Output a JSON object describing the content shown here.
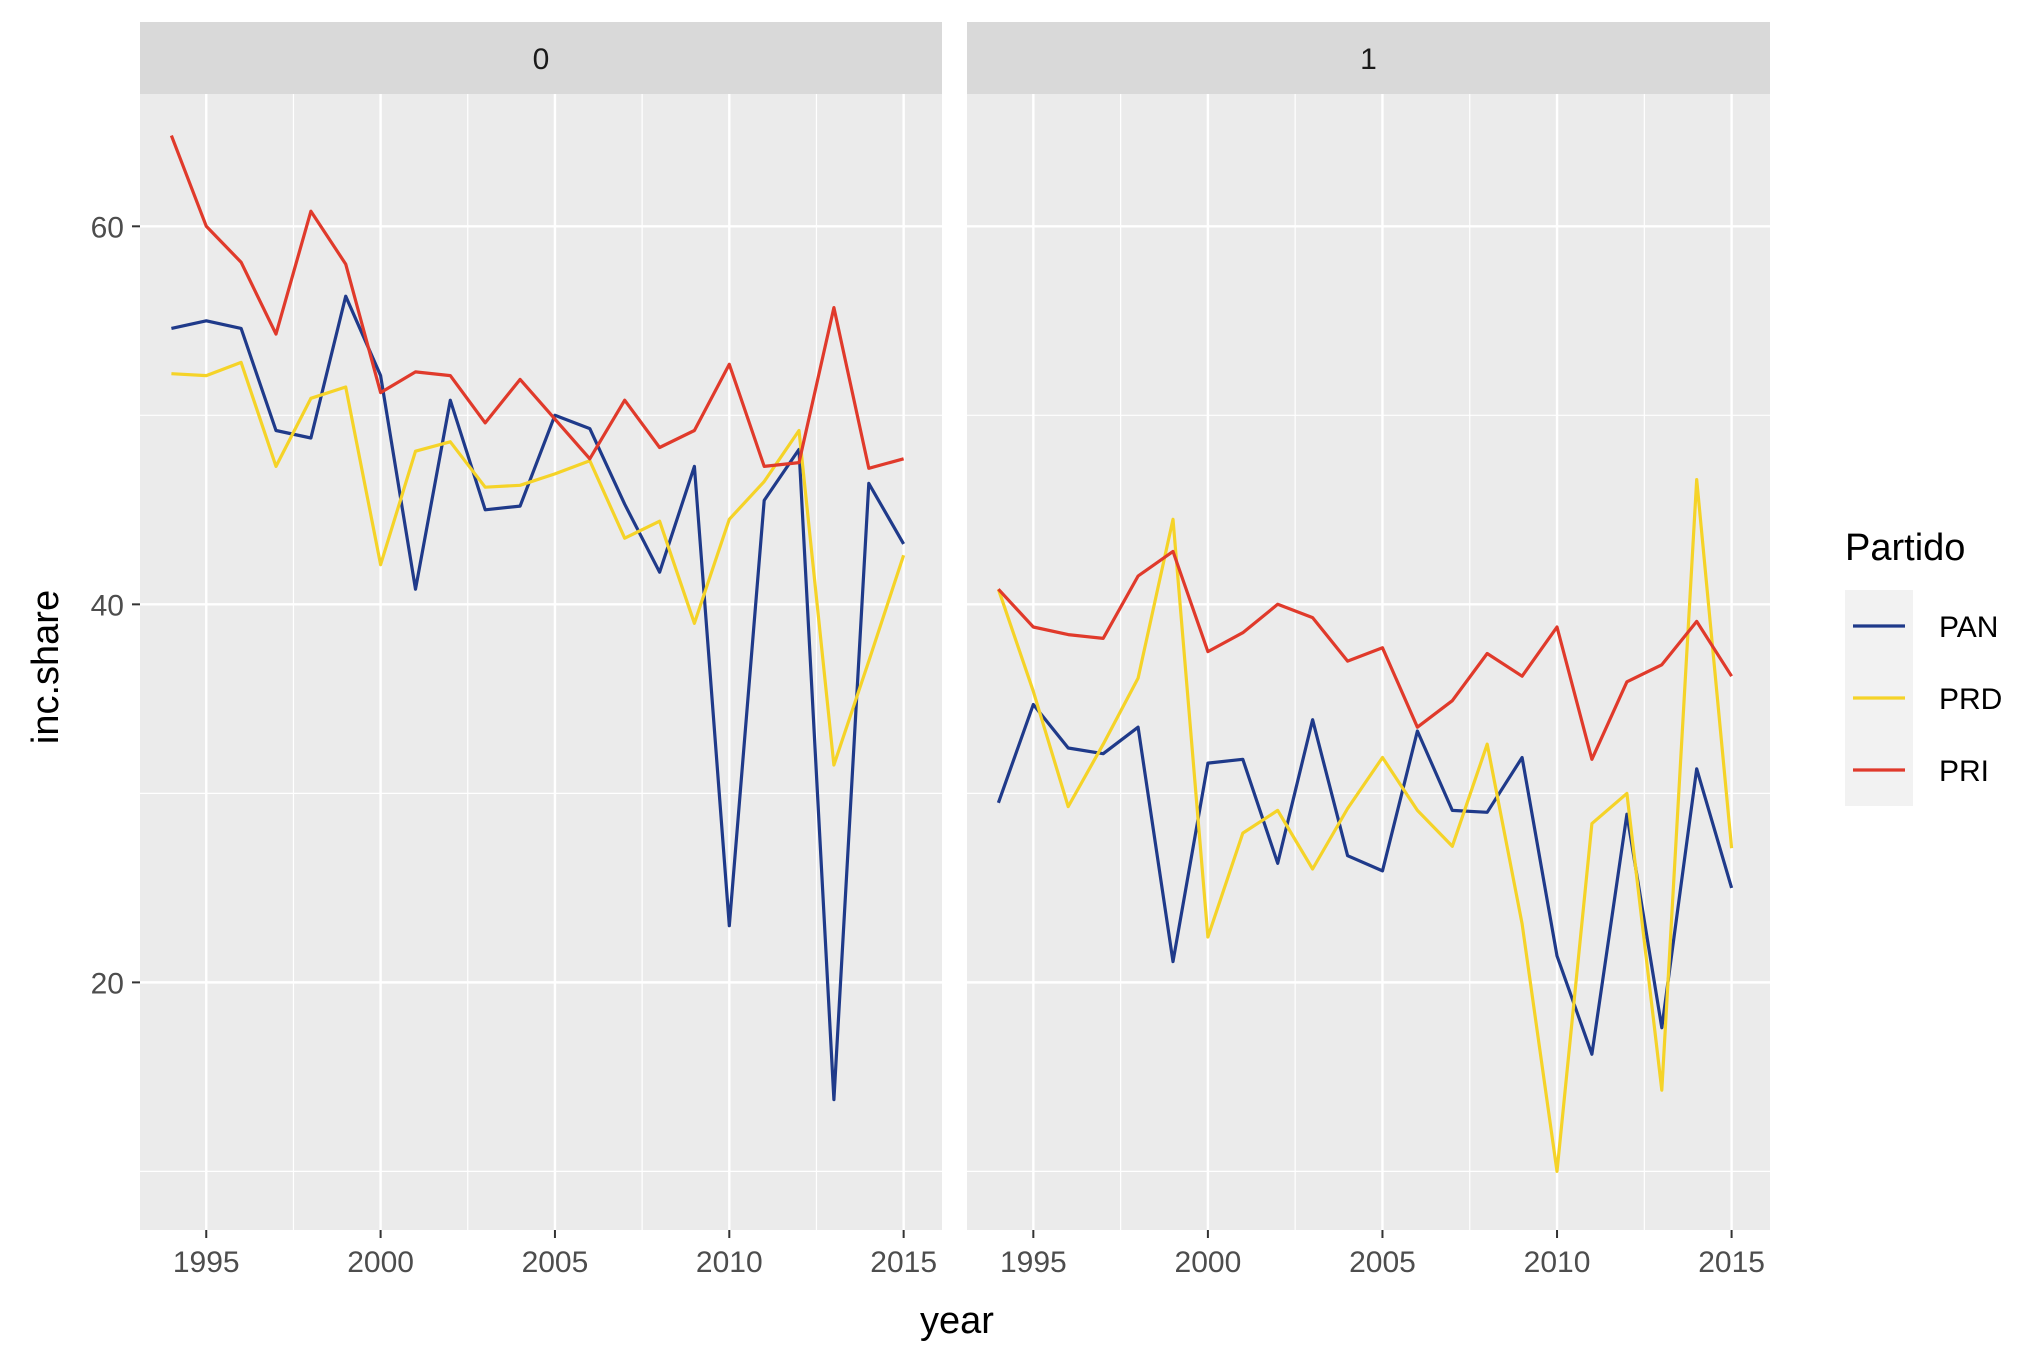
{
  "chart_data": {
    "type": "line",
    "facet_variable_values": [
      "0",
      "1"
    ],
    "xlabel": "year",
    "ylabel": "inc.share",
    "xlim": [
      1993.1,
      2016.1
    ],
    "ylim": [
      6.9,
      67.0
    ],
    "x_ticks": [
      1995,
      2000,
      2005,
      2010,
      2015
    ],
    "x_tick_labels": [
      "1995",
      "2000",
      "2005",
      "2010",
      "2015"
    ],
    "y_ticks": [
      20,
      40,
      60
    ],
    "y_tick_labels": [
      "20",
      "40",
      "60"
    ],
    "grid": true,
    "legend": {
      "title": "Partido",
      "position": "right",
      "entries": [
        "PAN",
        "PRD",
        "PRI"
      ]
    },
    "colors": {
      "PAN": "#1f3a8a",
      "PRD": "#f5d328",
      "PRI": "#e03a2b"
    },
    "x": [
      1994,
      1995,
      1996,
      1997,
      1998,
      1999,
      2000,
      2001,
      2002,
      2003,
      2004,
      2005,
      2006,
      2007,
      2008,
      2009,
      2010,
      2011,
      2012,
      2013,
      2014,
      2015
    ],
    "facets": [
      {
        "label": "0",
        "series": [
          {
            "name": "PAN",
            "values": [
              54.6,
              55.0,
              54.6,
              49.2,
              48.8,
              56.3,
              52.1,
              40.8,
              50.8,
              45.0,
              45.2,
              50.0,
              49.3,
              45.3,
              41.7,
              47.3,
              23.0,
              45.5,
              48.2,
              13.8,
              46.4,
              43.2
            ]
          },
          {
            "name": "PRD",
            "values": [
              52.2,
              52.1,
              52.8,
              47.3,
              50.9,
              51.5,
              42.1,
              48.1,
              48.6,
              46.2,
              46.3,
              46.9,
              47.6,
              43.5,
              44.4,
              39.0,
              44.5,
              46.5,
              49.2,
              31.5,
              37.0,
              42.6
            ]
          },
          {
            "name": "PRI",
            "values": [
              64.8,
              60.0,
              58.1,
              54.3,
              60.8,
              58.0,
              51.2,
              52.3,
              52.1,
              49.6,
              51.9,
              49.8,
              47.7,
              50.8,
              48.3,
              49.2,
              52.7,
              47.3,
              47.5,
              55.7,
              47.2,
              47.7
            ]
          }
        ]
      },
      {
        "label": "1",
        "series": [
          {
            "name": "PAN",
            "values": [
              29.5,
              34.7,
              32.4,
              32.1,
              33.5,
              21.1,
              31.6,
              31.8,
              26.3,
              33.9,
              26.7,
              25.9,
              33.3,
              29.1,
              29.0,
              31.9,
              21.4,
              16.2,
              28.9,
              17.6,
              31.3,
              25.0
            ]
          },
          {
            "name": "PRD",
            "values": [
              40.8,
              35.4,
              29.3,
              32.6,
              36.1,
              44.5,
              22.4,
              27.9,
              29.1,
              26.0,
              29.2,
              31.9,
              29.1,
              27.2,
              32.6,
              23.1,
              10.0,
              28.4,
              30.0,
              14.3,
              46.6,
              27.1
            ]
          },
          {
            "name": "PRI",
            "values": [
              40.8,
              38.8,
              38.4,
              38.2,
              41.5,
              42.8,
              37.5,
              38.5,
              40.0,
              39.3,
              37.0,
              37.7,
              33.5,
              34.9,
              37.4,
              36.2,
              38.8,
              31.8,
              35.9,
              36.8,
              39.1,
              36.2
            ]
          }
        ]
      }
    ]
  }
}
